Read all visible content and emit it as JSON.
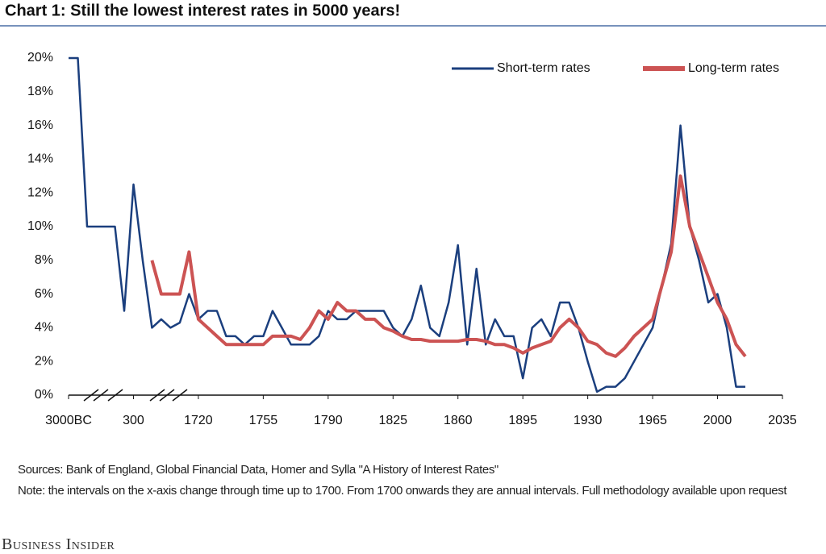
{
  "chart_data": {
    "type": "line",
    "title": "Chart 1:  Still the lowest interest rates in 5000 years!",
    "categories": [
      "3000BC",
      null,
      null,
      null,
      null,
      null,
      null,
      "300",
      null,
      null,
      null,
      null,
      null,
      null,
      "1720",
      null,
      null,
      null,
      null,
      null,
      null,
      "1755",
      null,
      null,
      null,
      null,
      null,
      null,
      "1790",
      null,
      null,
      null,
      null,
      null,
      null,
      "1825",
      null,
      null,
      null,
      null,
      null,
      null,
      "1860",
      null,
      null,
      null,
      null,
      null,
      null,
      "1895",
      null,
      null,
      null,
      null,
      null,
      null,
      "1930",
      null,
      null,
      null,
      null,
      null,
      null,
      "1965",
      null,
      null,
      null,
      null,
      null,
      null,
      "2000",
      null,
      null,
      null,
      null,
      null,
      null,
      "2035"
    ],
    "series": [
      {
        "name": "Short-term rates",
        "color": "#1b3f7e",
        "values": [
          20,
          20,
          10,
          10,
          10,
          10,
          5,
          12.5,
          8,
          4,
          4.5,
          4,
          4.3,
          6,
          4.5,
          5,
          5,
          3.5,
          3.5,
          3,
          3.5,
          3.5,
          5,
          4,
          3,
          3,
          3,
          3.5,
          5,
          4.5,
          4.5,
          5,
          5,
          5,
          5,
          4,
          3.5,
          4.5,
          6.5,
          4,
          3.5,
          5.5,
          8.9,
          3,
          7.5,
          3,
          4.5,
          3.5,
          3.5,
          1,
          4,
          4.5,
          3.5,
          5.5,
          5.5,
          4,
          2,
          0.2,
          0.5,
          0.5,
          1,
          2,
          3,
          4,
          6.5,
          9,
          16,
          10,
          8,
          5.5,
          6,
          4,
          0.5,
          0.5,
          null,
          null,
          null,
          null
        ]
      },
      {
        "name": "Long-term rates",
        "color": "#cc5353",
        "values": [
          null,
          null,
          null,
          null,
          null,
          null,
          null,
          null,
          null,
          8,
          6,
          6,
          6,
          8.5,
          4.5,
          4,
          3.5,
          3,
          3,
          3,
          3,
          3,
          3.5,
          3.5,
          3.5,
          3.3,
          4,
          5,
          4.5,
          5.5,
          5,
          5,
          4.5,
          4.5,
          4,
          3.8,
          3.5,
          3.3,
          3.3,
          3.2,
          3.2,
          3.2,
          3.2,
          3.3,
          3.3,
          3.2,
          3,
          3,
          2.8,
          2.5,
          2.8,
          3,
          3.2,
          4,
          4.5,
          4,
          3.2,
          3,
          2.5,
          2.3,
          2.8,
          3.5,
          4,
          4.5,
          6.5,
          8.5,
          13,
          10,
          8.5,
          7,
          5.5,
          4.5,
          3,
          2.3,
          null,
          null,
          null,
          null
        ]
      }
    ],
    "ylim": [
      0,
      20
    ],
    "yticks": [
      {
        "value": 0,
        "label": "0%"
      },
      {
        "value": 2,
        "label": "2%"
      },
      {
        "value": 4,
        "label": "4%"
      },
      {
        "value": 6,
        "label": "6%"
      },
      {
        "value": 8,
        "label": "8%"
      },
      {
        "value": 10,
        "label": "10%"
      },
      {
        "value": 12,
        "label": "12%"
      },
      {
        "value": 14,
        "label": "14%"
      },
      {
        "value": 16,
        "label": "16%"
      },
      {
        "value": 18,
        "label": "18%"
      },
      {
        "value": 20,
        "label": "20%"
      }
    ],
    "legend": "top-right",
    "sources": "Sources: Bank of England, Global Financial Data, Homer and Sylla \"A History of Interest Rates\"",
    "note": "Note: the intervals on the x-axis change through time up to 1700. From 1700 onwards they are annual intervals. Full methodology available upon request",
    "brand": "Business Insider"
  }
}
